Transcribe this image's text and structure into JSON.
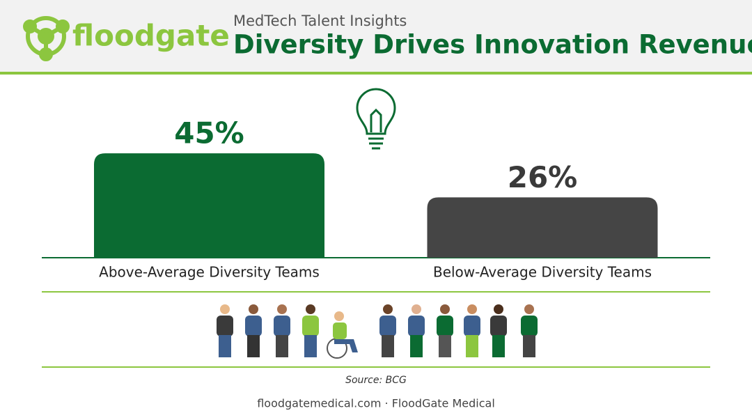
{
  "brand": "floodgate",
  "chart_data": {
    "type": "bar",
    "subtitle": "MedTech Talent Insights",
    "title": "Diversity Drives Innovation Revenue",
    "categories": [
      "Above-Average Diversity Teams",
      "Below-Average Diversity Teams"
    ],
    "values": [
      45,
      26
    ],
    "value_labels": [
      "45%",
      "26%"
    ],
    "colors": [
      "#0b6b32",
      "#454545"
    ],
    "source": "Source: BCG"
  },
  "footer": "floodgatemedical.com · FloodGate Medical"
}
